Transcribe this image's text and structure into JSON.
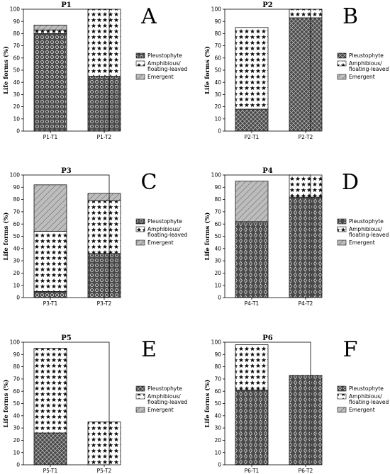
{
  "legend": {
    "entries": [
      {
        "key": "pleustophyte",
        "lines": [
          "Pleustophyte"
        ]
      },
      {
        "key": "amphibious",
        "lines": [
          "Amphibious/",
          "floating-leaved"
        ]
      },
      {
        "key": "emergent",
        "lines": [
          "Emergent"
        ]
      }
    ]
  },
  "chart_data": [
    {
      "type": "bar",
      "stacked": true,
      "title": "P1",
      "panel_letter": "A",
      "ylabel": "Life forms (%)",
      "ylim": [
        0,
        100
      ],
      "yticks": [
        0,
        10,
        20,
        30,
        40,
        50,
        60,
        70,
        80,
        90,
        100
      ],
      "categories": [
        "P1-T1",
        "P1-T2"
      ],
      "series": [
        {
          "name": "Pleustophyte",
          "values": [
            80,
            45
          ]
        },
        {
          "name": "Amphibious/floating-leaved",
          "values": [
            3,
            55
          ]
        },
        {
          "name": "Emergent",
          "values": [
            4,
            0
          ]
        }
      ]
    },
    {
      "type": "bar",
      "stacked": true,
      "title": "P2",
      "panel_letter": "B",
      "ylabel": "Life forms (%)",
      "ylim": [
        0,
        100
      ],
      "yticks": [
        0,
        10,
        20,
        30,
        40,
        50,
        60,
        70,
        80,
        90,
        100
      ],
      "categories": [
        "P2-T1",
        "P2-T2"
      ],
      "series": [
        {
          "name": "Pleustophyte",
          "values": [
            18,
            93
          ]
        },
        {
          "name": "Amphibious/floating-leaved",
          "values": [
            67,
            7
          ]
        },
        {
          "name": "Emergent",
          "values": [
            0,
            0
          ]
        }
      ]
    },
    {
      "type": "bar",
      "stacked": true,
      "title": "P3",
      "panel_letter": "C",
      "ylabel": "Life forms (%)",
      "ylim": [
        0,
        100
      ],
      "yticks": [
        0,
        10,
        20,
        30,
        40,
        50,
        60,
        70,
        80,
        90,
        100
      ],
      "categories": [
        "P3-T1",
        "P3-T2"
      ],
      "series": [
        {
          "name": "Pleustophyte",
          "values": [
            5,
            36
          ]
        },
        {
          "name": "Amphibious/floating-leaved",
          "values": [
            49,
            43
          ]
        },
        {
          "name": "Emergent",
          "values": [
            38,
            6
          ]
        }
      ]
    },
    {
      "type": "bar",
      "stacked": true,
      "title": "P4",
      "panel_letter": "D",
      "ylabel": "Life forms (%)",
      "ylim": [
        0,
        100
      ],
      "yticks": [
        0,
        10,
        20,
        30,
        40,
        50,
        60,
        70,
        80,
        90,
        100
      ],
      "categories": [
        "P4-T1",
        "P4-T2"
      ],
      "series": [
        {
          "name": "Pleustophyte",
          "values": [
            61,
            82
          ]
        },
        {
          "name": "Amphibious/floating-leaved",
          "values": [
            1,
            18
          ]
        },
        {
          "name": "Emergent",
          "values": [
            33,
            0
          ]
        }
      ]
    },
    {
      "type": "bar",
      "stacked": true,
      "title": "P5",
      "panel_letter": "E",
      "ylabel": "Life forms (%)",
      "ylim": [
        0,
        100
      ],
      "yticks": [
        0,
        10,
        20,
        30,
        40,
        50,
        60,
        70,
        80,
        90,
        100
      ],
      "categories": [
        "P5-T1",
        "P5-T2"
      ],
      "series": [
        {
          "name": "Pleustophyte",
          "values": [
            26,
            0
          ]
        },
        {
          "name": "Amphibious/floating-leaved",
          "values": [
            69,
            35
          ]
        },
        {
          "name": "Emergent",
          "values": [
            0,
            0
          ]
        }
      ]
    },
    {
      "type": "bar",
      "stacked": true,
      "title": "P6",
      "panel_letter": "F",
      "ylabel": "Life forms (%)",
      "ylim": [
        0,
        100
      ],
      "yticks": [
        0,
        10,
        20,
        30,
        40,
        50,
        60,
        70,
        80,
        90,
        100
      ],
      "categories": [
        "P6-T1",
        "P6-T2"
      ],
      "series": [
        {
          "name": "Pleustophyte",
          "values": [
            61,
            73
          ]
        },
        {
          "name": "Amphibious/floating-leaved",
          "values": [
            37,
            0
          ]
        },
        {
          "name": "Emergent",
          "values": [
            0,
            0
          ]
        }
      ]
    }
  ]
}
